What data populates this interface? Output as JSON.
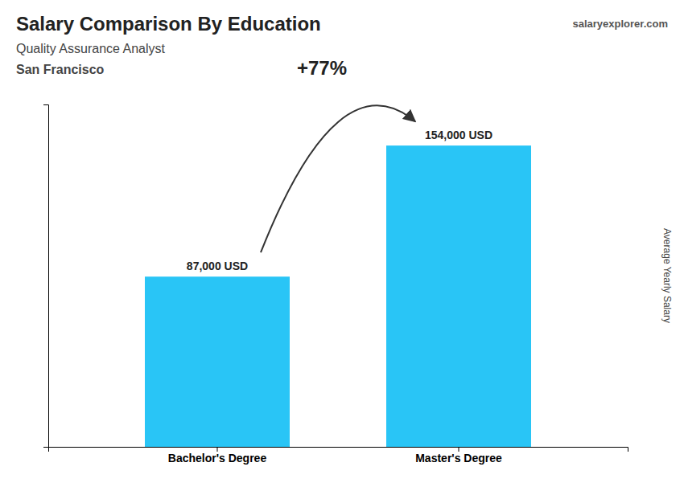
{
  "chart_data": {
    "type": "bar",
    "title": "Salary Comparison By Education",
    "subtitle": "Quality Assurance Analyst",
    "ylabel": "Average Yearly Salary",
    "categories": [
      "Bachelor's Degree",
      "Master's Degree"
    ],
    "values": [
      87000,
      154000
    ],
    "value_labels": [
      "87,000 USD",
      "154,000 USD"
    ],
    "data_labels": true,
    "color": "#29C5F6",
    "ylim": [
      0,
      175000
    ],
    "tick_labels": "x",
    "grid": false,
    "annotations": [
      "San Francisco",
      "+77%",
      "salaryexplorer.com"
    ]
  }
}
